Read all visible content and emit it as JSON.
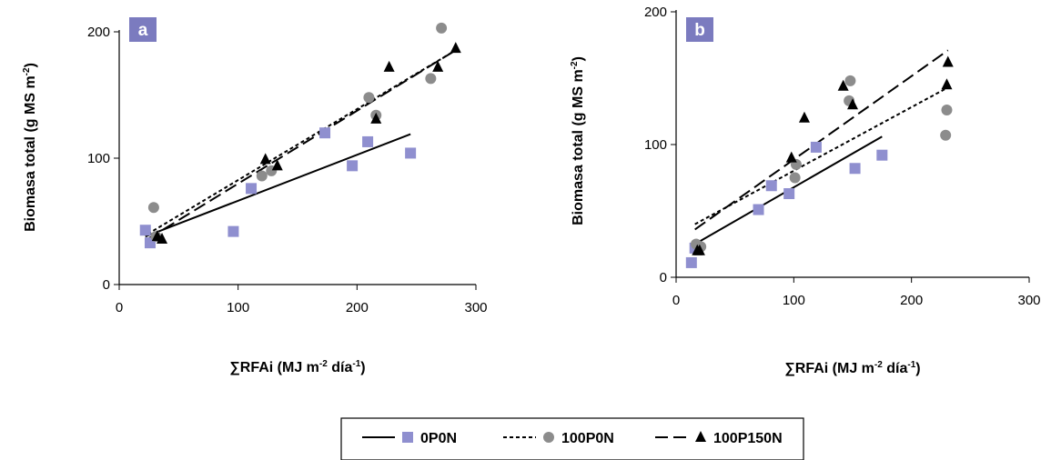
{
  "colors": {
    "0P0N": "#8f8fcf",
    "100P0N": "#8c8c8c",
    "100P150N": "#000000",
    "panel_label_bg": "#7b7bbf"
  },
  "legend": {
    "placement": "bottom-center",
    "items": [
      {
        "label": "0P0N",
        "marker": "square",
        "line": "solid"
      },
      {
        "label": "100P0N",
        "marker": "circle",
        "line": "dotted"
      },
      {
        "label": "100P150N",
        "marker": "triangle",
        "line": "dashed"
      }
    ]
  },
  "chart_data": [
    {
      "type": "scatter",
      "panel_label": "a",
      "xlabel": "∑RFAi (MJ m-2 día-1)",
      "xlabel_parts": {
        "main": "∑RFAi (MJ m",
        "sup1": "-2",
        "mid": " día",
        "sup2": "-1",
        "end": ")"
      },
      "ylabel": "Biomasa total (g MS m-2)",
      "ylabel_parts": {
        "main": "Biomasa total (g MS m",
        "sup": "-2",
        "end": ")"
      },
      "xlim": [
        0,
        300
      ],
      "ylim": [
        0,
        200
      ],
      "xticks": [
        0,
        100,
        200,
        300
      ],
      "yticks": [
        0,
        100,
        200
      ],
      "grid": false,
      "series": [
        {
          "name": "0P0N",
          "marker": "square",
          "points": [
            [
              22,
              43
            ],
            [
              26,
              33
            ],
            [
              96,
              42
            ],
            [
              111,
              76
            ],
            [
              173,
              120
            ],
            [
              196,
              94
            ],
            [
              209,
              113
            ],
            [
              245,
              104
            ]
          ],
          "fit": [
            [
              22,
              38
            ],
            [
              245,
              119
            ]
          ]
        },
        {
          "name": "100P0N",
          "marker": "circle",
          "points": [
            [
              29,
              61
            ],
            [
              31,
              38
            ],
            [
              120,
              86
            ],
            [
              128,
              90
            ],
            [
              210,
              148
            ],
            [
              216,
              134
            ],
            [
              262,
              163
            ],
            [
              271,
              203
            ]
          ],
          "fit": [
            [
              24,
              40
            ],
            [
              284,
              186
            ]
          ]
        },
        {
          "name": "100P150N",
          "marker": "triangle",
          "points": [
            [
              32,
              38
            ],
            [
              36,
              36
            ],
            [
              123,
              99
            ],
            [
              133,
              94
            ],
            [
              216,
              131
            ],
            [
              227,
              172
            ],
            [
              268,
              172
            ],
            [
              283,
              187
            ]
          ],
          "fit": [
            [
              24,
              36
            ],
            [
              284,
              186
            ]
          ]
        }
      ]
    },
    {
      "type": "scatter",
      "panel_label": "b",
      "xlabel": "∑RFAi (MJ m-2 día-1)",
      "xlabel_parts": {
        "main": "∑RFAi (MJ m",
        "sup1": "-2",
        "mid": " día",
        "sup2": "-1",
        "end": ")"
      },
      "ylabel": "Biomasa total (g MS m-2)",
      "ylabel_parts": {
        "main": "Biomasa total (g MS m",
        "sup": "-2",
        "end": ")"
      },
      "xlim": [
        0,
        300
      ],
      "ylim": [
        0,
        200
      ],
      "xticks": [
        0,
        100,
        200,
        300
      ],
      "yticks": [
        0,
        100,
        200
      ],
      "grid": false,
      "series": [
        {
          "name": "0P0N",
          "marker": "square",
          "points": [
            [
              13,
              11
            ],
            [
              16,
              22
            ],
            [
              70,
              51
            ],
            [
              81,
              69
            ],
            [
              96,
              63
            ],
            [
              119,
              98
            ],
            [
              152,
              82
            ],
            [
              175,
              92
            ]
          ],
          "fit": [
            [
              16,
              25
            ],
            [
              175,
              106
            ]
          ]
        },
        {
          "name": "100P0N",
          "marker": "circle",
          "points": [
            [
              17,
              25
            ],
            [
              21,
              23
            ],
            [
              101,
              75
            ],
            [
              102,
              85
            ],
            [
              147,
              133
            ],
            [
              148,
              148
            ],
            [
              229,
              107
            ],
            [
              230,
              126
            ]
          ],
          "fit": [
            [
              16,
              40
            ],
            [
              231,
              143
            ]
          ]
        },
        {
          "name": "100P150N",
          "marker": "triangle",
          "points": [
            [
              18,
              20
            ],
            [
              20,
              20
            ],
            [
              98,
              90
            ],
            [
              109,
              120
            ],
            [
              142,
              144
            ],
            [
              150,
              130
            ],
            [
              230,
              145
            ],
            [
              231,
              162
            ]
          ],
          "fit": [
            [
              16,
              36
            ],
            [
              231,
              171
            ]
          ]
        }
      ]
    }
  ]
}
